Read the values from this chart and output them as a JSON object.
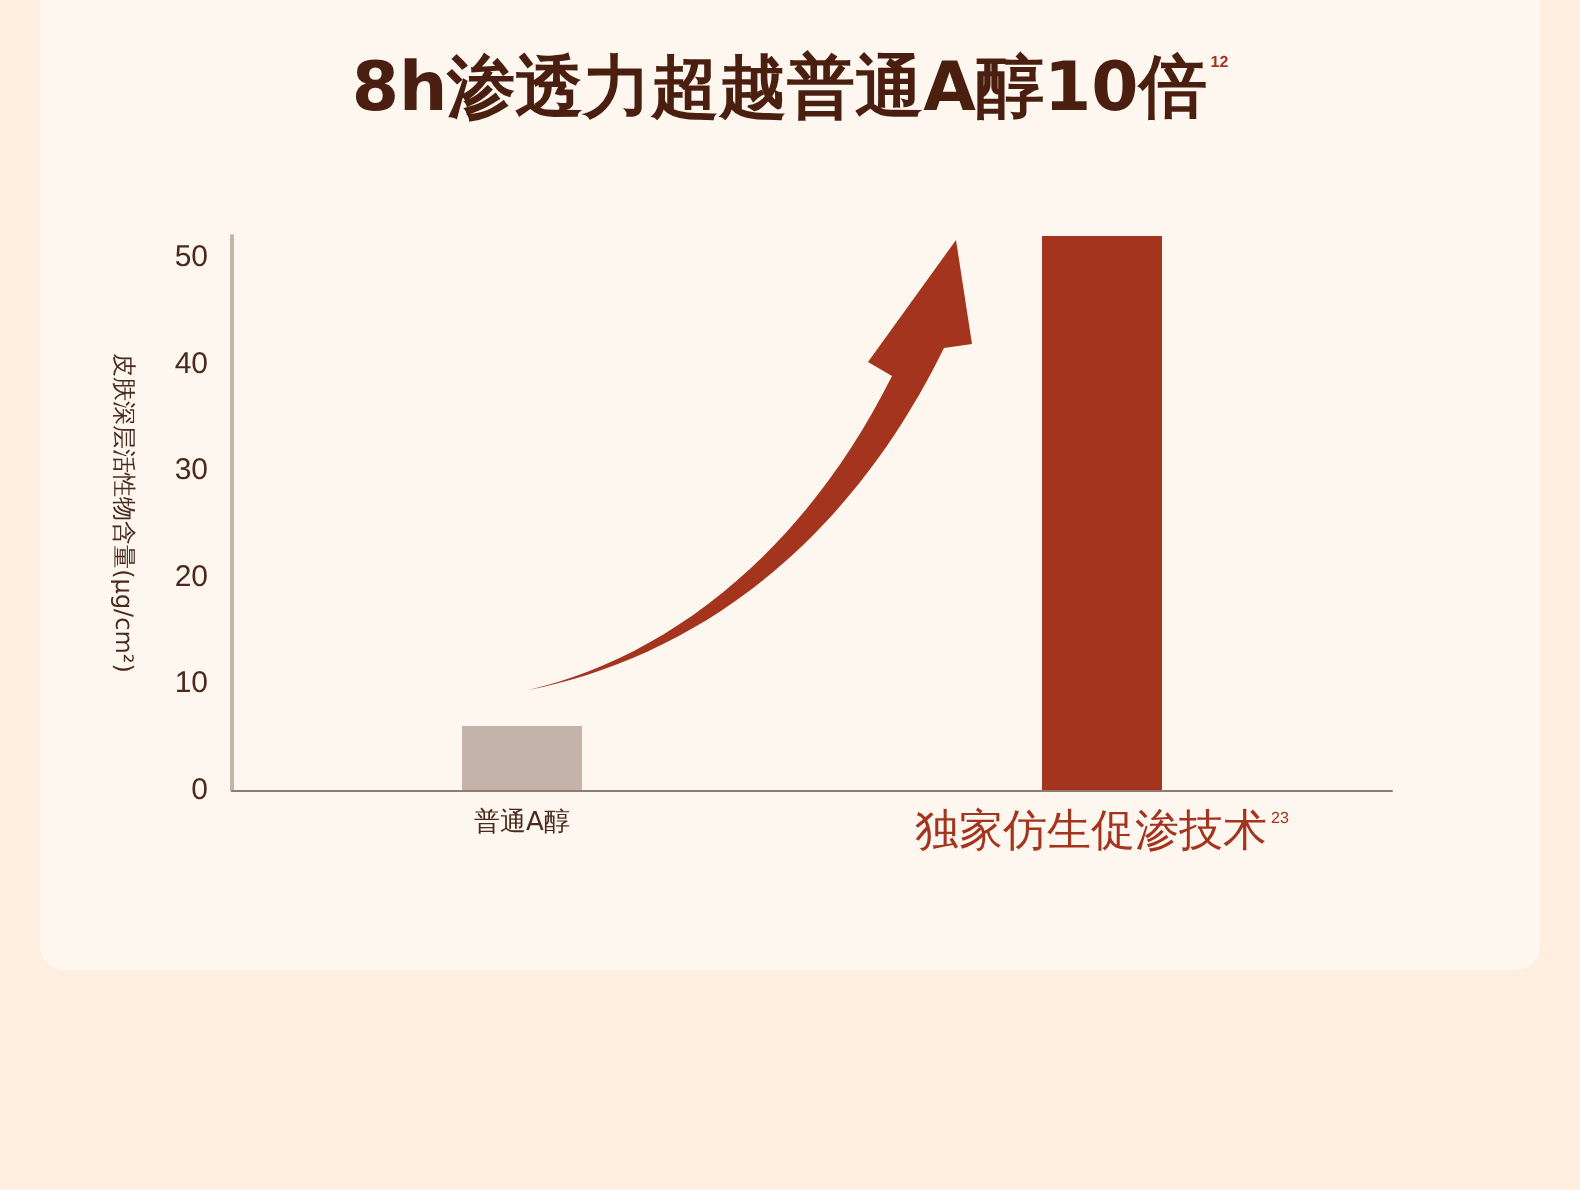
{
  "chart_data": {
    "type": "bar",
    "title": "8h渗透力超越普通A醇10倍$^{12}$",
    "ylabel": "皮肤深层活性物含量(μg/cm²)",
    "categories": [
      "普通A醇",
      "独家仿生促渗技术$^{23}$"
    ],
    "values": [
      6,
      52
    ],
    "colors": [
      "#c3b3aa",
      "#a4341e"
    ],
    "ylim": [
      0,
      52
    ],
    "yticks": [
      0,
      10,
      20,
      30,
      40,
      50
    ]
  }
}
